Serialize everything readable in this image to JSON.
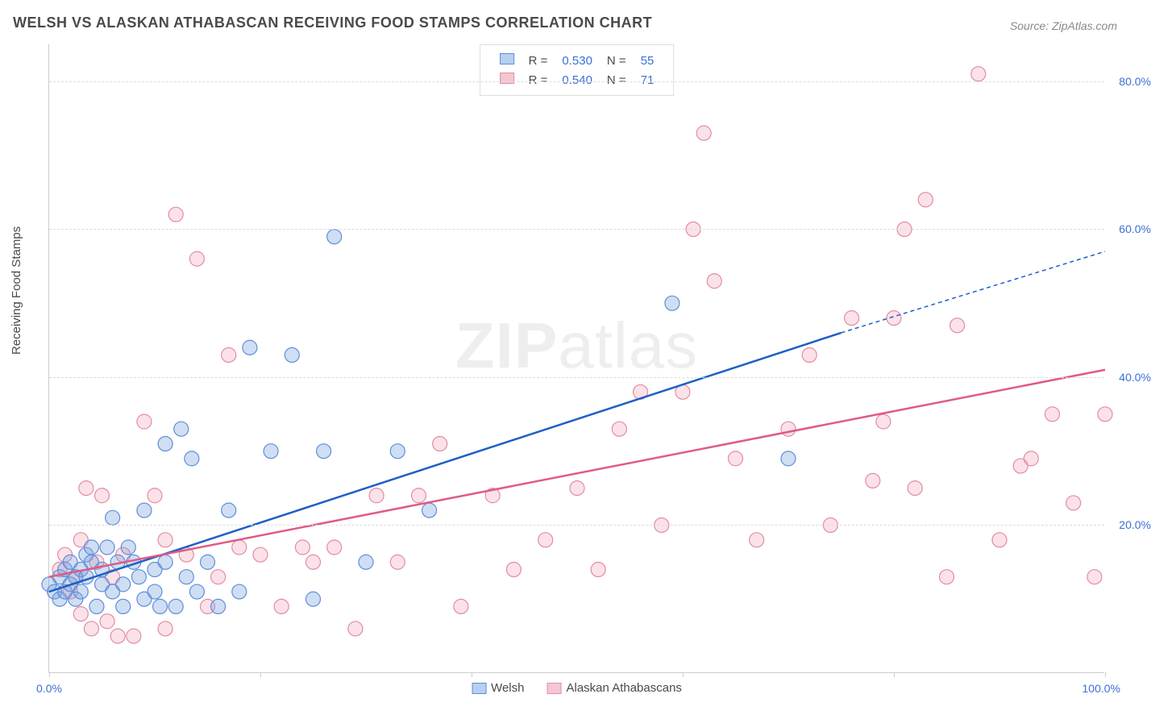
{
  "title": "WELSH VS ALASKAN ATHABASCAN RECEIVING FOOD STAMPS CORRELATION CHART",
  "source_prefix": "Source: ",
  "source_name": "ZipAtlas.com",
  "ylabel": "Receiving Food Stamps",
  "watermark_bold": "ZIP",
  "watermark_light": "atlas",
  "chart": {
    "type": "scatter",
    "xlim": [
      0,
      100
    ],
    "ylim": [
      0,
      85
    ],
    "x_tick_positions": [
      0,
      20,
      40,
      60,
      80,
      100
    ],
    "x_axis_min_label": "0.0%",
    "x_axis_max_label": "100.0%",
    "y_ticks": [
      20,
      40,
      60,
      80
    ],
    "y_tick_labels": [
      "20.0%",
      "40.0%",
      "60.0%",
      "80.0%"
    ],
    "grid_color": "#dddddd",
    "axis_color": "#cccccc",
    "background_color": "#ffffff",
    "marker_radius": 9,
    "marker_border_width": 1.2,
    "label_fontsize": 15,
    "tick_fontsize": 14,
    "tick_color": "#3b6fd6",
    "series": [
      {
        "name": "Welsh",
        "fill_color": "rgba(120,160,220,0.35)",
        "stroke_color": "#5d8fd9",
        "legend_fill": "#b8cff0",
        "legend_stroke": "#5d8fd9",
        "R": "0.530",
        "N": "55",
        "points": [
          [
            0,
            12
          ],
          [
            0.5,
            11
          ],
          [
            1,
            13
          ],
          [
            1,
            10
          ],
          [
            1.5,
            14
          ],
          [
            1.5,
            11
          ],
          [
            2,
            12
          ],
          [
            2,
            15
          ],
          [
            2.5,
            10
          ],
          [
            2.5,
            13
          ],
          [
            3,
            14
          ],
          [
            3,
            11
          ],
          [
            3.5,
            16
          ],
          [
            3.5,
            13
          ],
          [
            4,
            15
          ],
          [
            4,
            17
          ],
          [
            4.5,
            9
          ],
          [
            5,
            12
          ],
          [
            5,
            14
          ],
          [
            5.5,
            17
          ],
          [
            6,
            11
          ],
          [
            6,
            21
          ],
          [
            6.5,
            15
          ],
          [
            7,
            12
          ],
          [
            7,
            9
          ],
          [
            7.5,
            17
          ],
          [
            8,
            15
          ],
          [
            8.5,
            13
          ],
          [
            9,
            10
          ],
          [
            9,
            22
          ],
          [
            10,
            11
          ],
          [
            10,
            14
          ],
          [
            10.5,
            9
          ],
          [
            11,
            15
          ],
          [
            11,
            31
          ],
          [
            12,
            9
          ],
          [
            12.5,
            33
          ],
          [
            13,
            13
          ],
          [
            13.5,
            29
          ],
          [
            14,
            11
          ],
          [
            15,
            15
          ],
          [
            16,
            9
          ],
          [
            17,
            22
          ],
          [
            18,
            11
          ],
          [
            19,
            44
          ],
          [
            21,
            30
          ],
          [
            23,
            43
          ],
          [
            25,
            10
          ],
          [
            26,
            30
          ],
          [
            27,
            59
          ],
          [
            30,
            15
          ],
          [
            33,
            30
          ],
          [
            36,
            22
          ],
          [
            59,
            50
          ],
          [
            70,
            29
          ]
        ],
        "trend_line": {
          "x1": 0,
          "y1": 11,
          "x2": 75,
          "y2": 46,
          "color": "#1f5fc4",
          "width": 2.5
        },
        "trend_extrapolate": {
          "x1": 75,
          "y1": 46,
          "x2": 100,
          "y2": 57,
          "color": "#1f5fc4",
          "width": 1.5,
          "dash": "5,4"
        }
      },
      {
        "name": "Alaskan Athabascans",
        "fill_color": "rgba(240,160,180,0.30)",
        "stroke_color": "#e48ba3",
        "legend_fill": "#f5c6d2",
        "legend_stroke": "#e48ba3",
        "R": "0.540",
        "N": "71",
        "points": [
          [
            1,
            14
          ],
          [
            1.5,
            16
          ],
          [
            2,
            11
          ],
          [
            2.5,
            13
          ],
          [
            3,
            18
          ],
          [
            3,
            8
          ],
          [
            3.5,
            25
          ],
          [
            4,
            6
          ],
          [
            4.5,
            15
          ],
          [
            5,
            24
          ],
          [
            5.5,
            7
          ],
          [
            6,
            13
          ],
          [
            6.5,
            5
          ],
          [
            7,
            16
          ],
          [
            8,
            5
          ],
          [
            9,
            34
          ],
          [
            10,
            24
          ],
          [
            11,
            6
          ],
          [
            11,
            18
          ],
          [
            12,
            62
          ],
          [
            13,
            16
          ],
          [
            14,
            56
          ],
          [
            15,
            9
          ],
          [
            16,
            13
          ],
          [
            17,
            43
          ],
          [
            18,
            17
          ],
          [
            20,
            16
          ],
          [
            22,
            9
          ],
          [
            24,
            17
          ],
          [
            25,
            15
          ],
          [
            27,
            17
          ],
          [
            29,
            6
          ],
          [
            31,
            24
          ],
          [
            33,
            15
          ],
          [
            35,
            24
          ],
          [
            37,
            31
          ],
          [
            39,
            9
          ],
          [
            42,
            24
          ],
          [
            44,
            14
          ],
          [
            47,
            18
          ],
          [
            50,
            25
          ],
          [
            52,
            14
          ],
          [
            54,
            33
          ],
          [
            56,
            38
          ],
          [
            58,
            20
          ],
          [
            60,
            38
          ],
          [
            61,
            60
          ],
          [
            62,
            73
          ],
          [
            63,
            53
          ],
          [
            65,
            29
          ],
          [
            67,
            18
          ],
          [
            70,
            33
          ],
          [
            72,
            43
          ],
          [
            74,
            20
          ],
          [
            76,
            48
          ],
          [
            78,
            26
          ],
          [
            79,
            34
          ],
          [
            80,
            48
          ],
          [
            81,
            60
          ],
          [
            82,
            25
          ],
          [
            83,
            64
          ],
          [
            85,
            13
          ],
          [
            86,
            47
          ],
          [
            88,
            81
          ],
          [
            90,
            18
          ],
          [
            92,
            28
          ],
          [
            93,
            29
          ],
          [
            95,
            35
          ],
          [
            97,
            23
          ],
          [
            99,
            13
          ],
          [
            100,
            35
          ]
        ],
        "trend_line": {
          "x1": 0,
          "y1": 13,
          "x2": 100,
          "y2": 41,
          "color": "#e05a84",
          "width": 2.5
        }
      }
    ]
  },
  "legend_top": {
    "r_label": "R =",
    "n_label": "N ="
  },
  "legend_bottom": {
    "items": [
      "Welsh",
      "Alaskan Athabascans"
    ]
  }
}
